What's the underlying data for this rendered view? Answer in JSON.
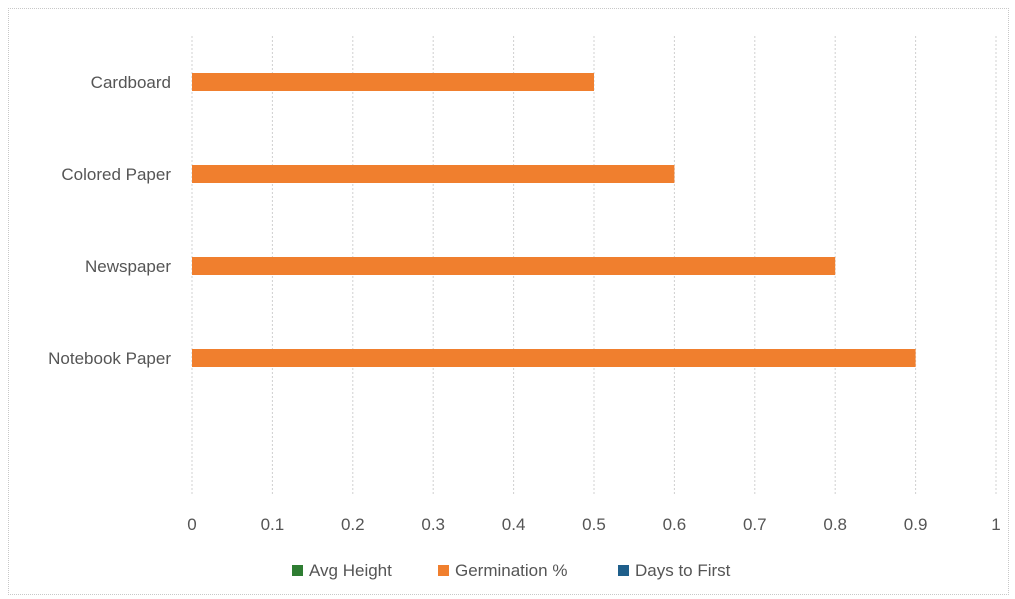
{
  "chart_data": {
    "type": "bar",
    "orientation": "horizontal",
    "categories": [
      "Cardboard",
      "Colored Paper",
      "Newspaper",
      "Notebook Paper"
    ],
    "series": [
      {
        "name": "Avg Height",
        "color": "#2e7d32",
        "values": [
          null,
          null,
          null,
          null
        ]
      },
      {
        "name": "Germination %",
        "color": "#f07f2e",
        "values": [
          0.5,
          0.6,
          0.8,
          0.9
        ]
      },
      {
        "name": "Days to First",
        "color": "#1f5f8b",
        "values": [
          null,
          null,
          null,
          null
        ]
      }
    ],
    "xlim": [
      0,
      1
    ],
    "xticks": [
      "0",
      "0.1",
      "0.2",
      "0.3",
      "0.4",
      "0.5",
      "0.6",
      "0.7",
      "0.8",
      "0.9",
      "1"
    ],
    "grid": "vertical",
    "legend_position": "bottom",
    "title": "",
    "xlabel": "",
    "ylabel": ""
  }
}
